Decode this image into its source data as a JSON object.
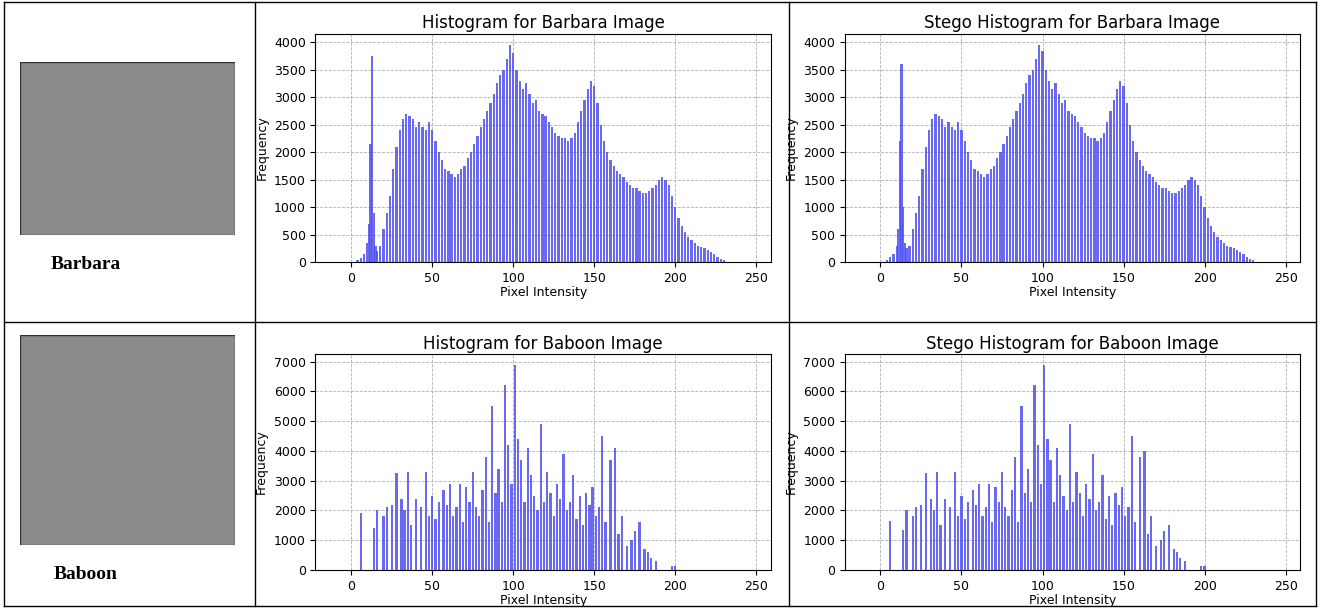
{
  "images": [
    {
      "label": "Barbara"
    },
    {
      "label": "Baboon"
    }
  ],
  "chart_data": [
    {
      "type": "bar",
      "title": "Histogram for Barbara Image",
      "x_label": "Pixel Intensity",
      "y_label": "Frequency",
      "x": [
        4,
        6,
        8,
        10,
        11,
        12,
        13,
        14,
        15,
        16,
        18,
        20,
        22,
        24,
        26,
        28,
        30,
        32,
        34,
        36,
        38,
        40,
        42,
        44,
        46,
        48,
        50,
        52,
        54,
        56,
        58,
        60,
        62,
        64,
        66,
        68,
        70,
        72,
        74,
        76,
        78,
        80,
        82,
        84,
        86,
        88,
        90,
        92,
        94,
        96,
        98,
        100,
        102,
        104,
        106,
        108,
        110,
        112,
        114,
        116,
        118,
        120,
        122,
        124,
        126,
        128,
        130,
        132,
        134,
        136,
        138,
        140,
        142,
        144,
        146,
        148,
        150,
        152,
        154,
        156,
        158,
        160,
        162,
        164,
        166,
        168,
        170,
        172,
        174,
        176,
        178,
        180,
        182,
        184,
        186,
        188,
        190,
        192,
        194,
        196,
        198,
        200,
        202,
        204,
        206,
        208,
        210,
        212,
        214,
        216,
        218,
        220,
        222,
        224,
        226,
        228,
        230
      ],
      "values": [
        30,
        80,
        150,
        350,
        700,
        2150,
        3750,
        900,
        300,
        200,
        300,
        600,
        900,
        1200,
        1700,
        2100,
        2400,
        2600,
        2700,
        2650,
        2600,
        2450,
        2550,
        2450,
        2400,
        2550,
        2400,
        2200,
        2000,
        1850,
        1700,
        1650,
        1600,
        1550,
        1600,
        1700,
        1750,
        1900,
        2000,
        2150,
        2300,
        2450,
        2600,
        2750,
        2900,
        3050,
        3250,
        3400,
        3500,
        3700,
        3950,
        3800,
        3500,
        3300,
        3150,
        3250,
        3050,
        2900,
        2950,
        2750,
        2700,
        2650,
        2550,
        2450,
        2350,
        2300,
        2250,
        2250,
        2200,
        2250,
        2350,
        2550,
        2750,
        2950,
        3150,
        3300,
        3200,
        2900,
        2500,
        2200,
        2000,
        1850,
        1750,
        1650,
        1600,
        1550,
        1450,
        1400,
        1350,
        1350,
        1300,
        1250,
        1250,
        1300,
        1350,
        1400,
        1500,
        1550,
        1500,
        1400,
        1200,
        1000,
        800,
        650,
        550,
        450,
        400,
        350,
        300,
        280,
        250,
        220,
        180,
        150,
        100,
        60,
        30
      ],
      "color": "#4f4ff0",
      "xlim": [
        -22,
        259
      ],
      "xticks": [
        0,
        50,
        100,
        150,
        200,
        250
      ],
      "ylim": [
        0,
        4150
      ],
      "yticks": [
        0,
        500,
        1000,
        1500,
        2000,
        2500,
        3000,
        3500,
        4000
      ],
      "grid": true
    },
    {
      "type": "bar",
      "title": "Stego Histogram for Barbara Image",
      "x_label": "Pixel Intensity",
      "y_label": "Frequency",
      "x": [
        4,
        6,
        8,
        10,
        11,
        12,
        13,
        14,
        15,
        16,
        18,
        20,
        22,
        24,
        26,
        28,
        30,
        32,
        34,
        36,
        38,
        40,
        42,
        44,
        46,
        48,
        50,
        52,
        54,
        56,
        58,
        60,
        62,
        64,
        66,
        68,
        70,
        72,
        74,
        76,
        78,
        80,
        82,
        84,
        86,
        88,
        90,
        92,
        94,
        96,
        98,
        100,
        102,
        104,
        106,
        108,
        110,
        112,
        114,
        116,
        118,
        120,
        122,
        124,
        126,
        128,
        130,
        132,
        134,
        136,
        138,
        140,
        142,
        144,
        146,
        148,
        150,
        152,
        154,
        156,
        158,
        160,
        162,
        164,
        166,
        168,
        170,
        172,
        174,
        176,
        178,
        180,
        182,
        184,
        186,
        188,
        190,
        192,
        194,
        196,
        198,
        200,
        202,
        204,
        206,
        208,
        210,
        212,
        214,
        216,
        218,
        220,
        222,
        224,
        226,
        228,
        230
      ],
      "values": [
        40,
        100,
        150,
        300,
        600,
        2200,
        3600,
        1000,
        350,
        250,
        300,
        600,
        900,
        1200,
        1700,
        2100,
        2400,
        2600,
        2700,
        2650,
        2600,
        2450,
        2550,
        2450,
        2400,
        2550,
        2400,
        2200,
        2000,
        1850,
        1700,
        1650,
        1600,
        1550,
        1600,
        1700,
        1750,
        1900,
        2000,
        2150,
        2300,
        2450,
        2600,
        2750,
        2900,
        3050,
        3250,
        3400,
        3500,
        3700,
        3950,
        3850,
        3500,
        3300,
        3150,
        3250,
        3050,
        2900,
        2950,
        2750,
        2700,
        2650,
        2550,
        2450,
        2350,
        2300,
        2250,
        2250,
        2200,
        2250,
        2350,
        2550,
        2750,
        2950,
        3150,
        3300,
        3200,
        2900,
        2500,
        2200,
        2000,
        1850,
        1750,
        1650,
        1600,
        1550,
        1450,
        1400,
        1350,
        1350,
        1300,
        1250,
        1250,
        1300,
        1350,
        1400,
        1500,
        1550,
        1500,
        1400,
        1200,
        1000,
        800,
        650,
        550,
        450,
        400,
        350,
        300,
        280,
        250,
        220,
        180,
        150,
        100,
        60,
        30
      ],
      "color": "#4f4ff0",
      "xlim": [
        -22,
        259
      ],
      "xticks": [
        0,
        50,
        100,
        150,
        200,
        250
      ],
      "ylim": [
        0,
        4150
      ],
      "yticks": [
        0,
        500,
        1000,
        1500,
        2000,
        2500,
        3000,
        3500,
        4000
      ],
      "grid": true
    },
    {
      "type": "bar",
      "title": "Histogram for Baboon Image",
      "x_label": "Pixel Intensity",
      "y_label": "Frequency",
      "x": [
        6,
        14,
        16,
        20,
        22,
        25,
        28,
        31,
        33,
        35,
        37,
        40,
        43,
        46,
        48,
        50,
        52,
        54,
        57,
        59,
        61,
        63,
        65,
        67,
        69,
        71,
        73,
        75,
        77,
        79,
        81,
        83,
        85,
        87,
        89,
        91,
        93,
        95,
        97,
        99,
        101,
        103,
        105,
        107,
        109,
        111,
        113,
        115,
        117,
        119,
        121,
        123,
        125,
        127,
        129,
        131,
        133,
        135,
        137,
        139,
        141,
        143,
        145,
        147,
        149,
        151,
        153,
        155,
        157,
        160,
        163,
        165,
        167,
        170,
        173,
        175,
        178,
        181,
        183,
        185,
        188,
        198,
        200
      ],
      "values": [
        1900,
        1400,
        2000,
        1800,
        2100,
        2200,
        3250,
        2400,
        2000,
        3300,
        1500,
        2400,
        2100,
        3300,
        1800,
        2500,
        1700,
        2300,
        2700,
        2200,
        2900,
        1800,
        2100,
        2900,
        1600,
        2800,
        2300,
        3300,
        2100,
        1800,
        2700,
        3800,
        1600,
        5500,
        2600,
        3400,
        2300,
        6200,
        4200,
        2900,
        6900,
        4400,
        3700,
        2300,
        4100,
        3200,
        2500,
        2000,
        4900,
        2300,
        3300,
        2600,
        1800,
        2900,
        2400,
        3900,
        2000,
        2300,
        3200,
        1700,
        2500,
        1500,
        2600,
        2200,
        2800,
        1800,
        2100,
        4500,
        1600,
        3700,
        4100,
        1200,
        1800,
        800,
        1000,
        1300,
        1600,
        700,
        600,
        400,
        300,
        150,
        150
      ],
      "color": "#4f4ff0",
      "xlim": [
        -22,
        259
      ],
      "xticks": [
        0,
        50,
        100,
        150,
        200,
        250
      ],
      "ylim": [
        0,
        7250
      ],
      "yticks": [
        0,
        1000,
        2000,
        3000,
        4000,
        5000,
        6000,
        7000
      ],
      "grid": true
    },
    {
      "type": "bar",
      "title": "Stego Histogram for Baboon Image",
      "x_label": "Pixel Intensity",
      "y_label": "Frequency",
      "x": [
        6,
        14,
        16,
        20,
        22,
        25,
        28,
        31,
        33,
        35,
        37,
        40,
        43,
        46,
        48,
        50,
        52,
        54,
        57,
        59,
        61,
        63,
        65,
        67,
        69,
        71,
        73,
        75,
        77,
        79,
        81,
        83,
        85,
        87,
        89,
        91,
        93,
        95,
        97,
        99,
        101,
        103,
        105,
        107,
        109,
        111,
        113,
        115,
        117,
        119,
        121,
        123,
        125,
        127,
        129,
        131,
        133,
        135,
        137,
        139,
        141,
        143,
        145,
        147,
        149,
        151,
        153,
        155,
        157,
        160,
        163,
        165,
        167,
        170,
        173,
        175,
        178,
        181,
        183,
        185,
        188,
        198,
        200
      ],
      "values": [
        1650,
        1350,
        2000,
        1800,
        2100,
        2200,
        3250,
        2400,
        2000,
        3300,
        1500,
        2400,
        2100,
        3300,
        1800,
        2500,
        1700,
        2300,
        2700,
        2200,
        2900,
        1800,
        2100,
        2900,
        1600,
        2800,
        2300,
        3300,
        2100,
        1800,
        2700,
        3800,
        1600,
        5500,
        2600,
        3400,
        2300,
        6200,
        4200,
        2900,
        6900,
        4400,
        3700,
        2300,
        4100,
        3200,
        2500,
        2000,
        4900,
        2300,
        3300,
        2600,
        1800,
        2900,
        2400,
        3900,
        2000,
        2300,
        3200,
        1700,
        2500,
        1500,
        2600,
        2200,
        2800,
        1800,
        2100,
        4500,
        1600,
        3800,
        4000,
        1200,
        1800,
        800,
        1000,
        1300,
        1500,
        700,
        600,
        400,
        300,
        150,
        150
      ],
      "color": "#4f4ff0",
      "xlim": [
        -22,
        259
      ],
      "xticks": [
        0,
        50,
        100,
        150,
        200,
        250
      ],
      "ylim": [
        0,
        7250
      ],
      "yticks": [
        0,
        1000,
        2000,
        3000,
        4000,
        5000,
        6000,
        7000
      ],
      "grid": true
    }
  ]
}
